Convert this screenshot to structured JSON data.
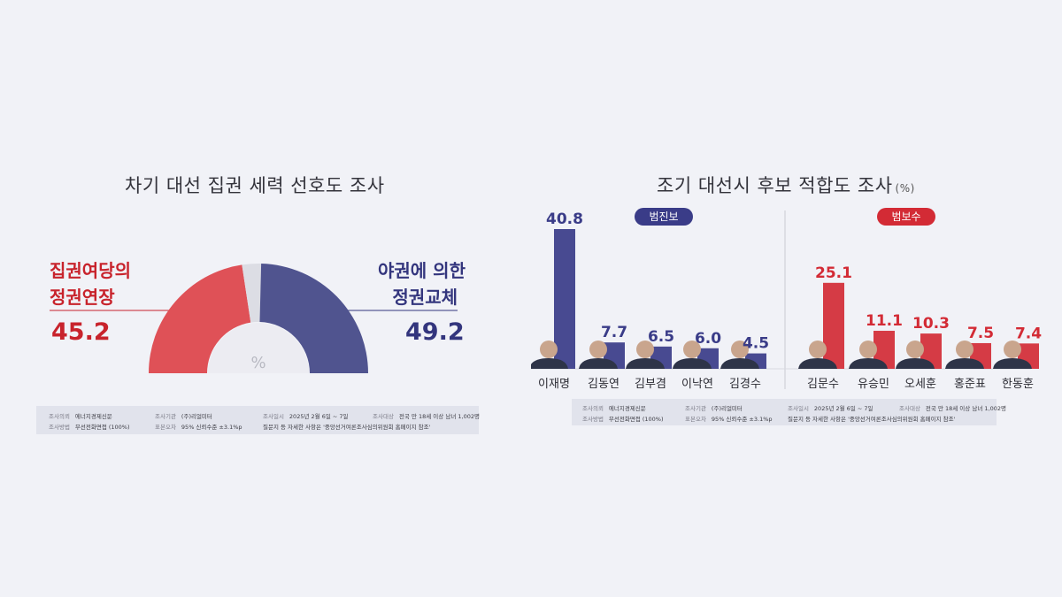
{
  "chart_data": [
    {
      "type": "pie",
      "title": "차기 대선 집권 세력 선호도 조사",
      "center_label": "%",
      "series": [
        {
          "label_line1": "집권여당의",
          "label_line2": "정권연장",
          "value": 45.2,
          "color": "#df5157"
        },
        {
          "label_line1": "야권에 의한",
          "label_line2": "정권교체",
          "value": 49.2,
          "color": "#50548f"
        }
      ],
      "value_labels": [
        "45.2",
        "49.2"
      ],
      "remainder_color": "#dcdde4",
      "footer": {
        "client_key": "조사의뢰",
        "client": "에너지경제신문",
        "agency_key": "조사기관",
        "agency": "(주)리얼미터",
        "date_key": "조사일시",
        "date": "2025년 2월 6일 ~ 7일",
        "target_key": "조사대상",
        "target": "전국 만 18세 이상 남녀 1,002명",
        "method_key": "조사방법",
        "method": "무선전화면접 (100%)",
        "error_key": "표본오차",
        "error": "95% 신뢰수준 ±3.1%p",
        "note": "질문지 등 자세한 사항은 '중앙선거여론조사심의위원회 홈페이지 참조'"
      }
    },
    {
      "type": "bar",
      "title": "조기 대선시 후보 적합도 조사",
      "unit": "(%)",
      "groups": [
        {
          "label": "범진보",
          "color": "#3a3c88"
        },
        {
          "label": "범보수",
          "color": "#d32b35"
        }
      ],
      "categories": [
        "이재명",
        "김동연",
        "김부겸",
        "이낙연",
        "김경수",
        "김문수",
        "유승민",
        "오세훈",
        "홍준표",
        "한동훈"
      ],
      "values": [
        40.8,
        7.7,
        6.5,
        6.0,
        4.5,
        25.1,
        11.1,
        10.3,
        7.5,
        7.4
      ],
      "value_labels": [
        "40.8",
        "7.7",
        "6.5",
        "6.0",
        "4.5",
        "25.1",
        "11.1",
        "10.3",
        "7.5",
        "7.4"
      ],
      "group_of": [
        0,
        0,
        0,
        0,
        0,
        1,
        1,
        1,
        1,
        1
      ],
      "footer": {
        "client_key": "조사의뢰",
        "client": "에너지경제신문",
        "agency_key": "조사기관",
        "agency": "(주)리얼미터",
        "date_key": "조사일시",
        "date": "2025년 2월 6일 ~ 7일",
        "target_key": "조사대상",
        "target": "전국 만 18세 이상 남녀 1,002명",
        "method_key": "조사방법",
        "method": "무선전화면접 (100%)",
        "error_key": "표본오차",
        "error": "95% 신뢰수준 ±3.1%p",
        "note": "질문지 등 자세한 사항은 '중앙선거여론조사심의위원회 홈페이지 참조'"
      }
    }
  ]
}
